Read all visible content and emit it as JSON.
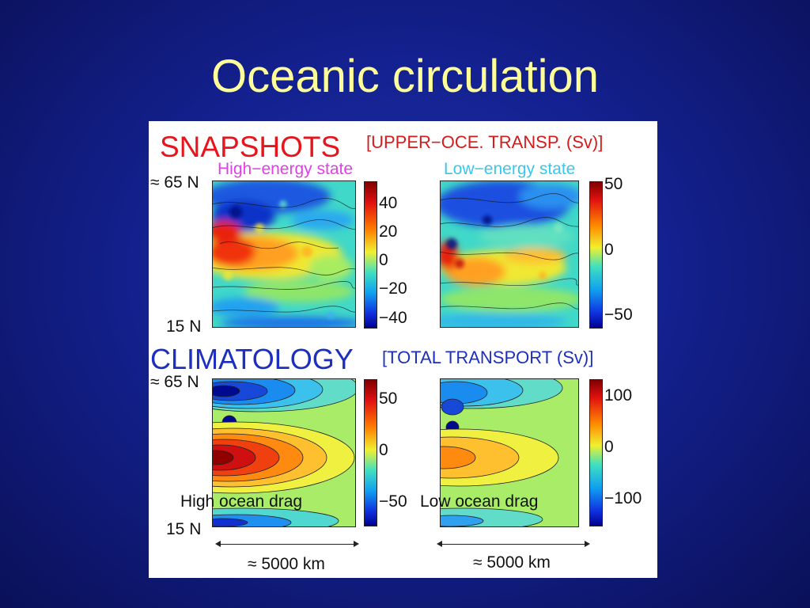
{
  "slide": {
    "title": "Oceanic circulation"
  },
  "figure": {
    "snapshots": {
      "heading": "SNAPSHOTS",
      "subheading": "[UPPER−OCE. TRANSP. (Sv)]",
      "left_state": "High−energy state",
      "right_state": "Low−energy state",
      "left_colorbar_ticks": [
        "40",
        "20",
        "0",
        "−20",
        "−40"
      ],
      "right_colorbar_ticks": [
        "50",
        "0",
        "−50"
      ]
    },
    "climatology": {
      "heading": "CLIMATOLOGY",
      "subheading": "[TOTAL TRANSPORT (Sv)]",
      "left_caption": "High ocean drag",
      "right_caption": "Low ocean drag",
      "left_colorbar_ticks": [
        "50",
        "0",
        "−50"
      ],
      "right_colorbar_ticks": [
        "100",
        "0",
        "−100"
      ]
    },
    "axes": {
      "lat_top": "≈ 65 N",
      "lat_bottom": "15 N",
      "width_label": "≈ 5000 km"
    }
  }
}
